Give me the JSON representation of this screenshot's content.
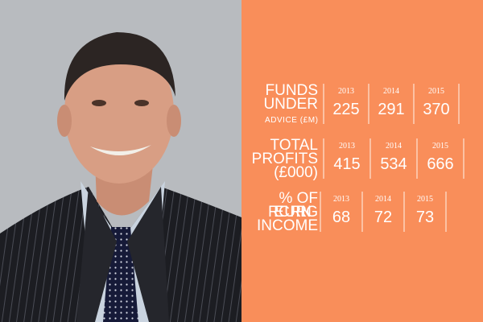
{
  "sections": [
    {
      "label": [
        "FUNDS",
        "UNDER",
        "ADVICE (£M)"
      ],
      "items": [
        {
          "year": 2013,
          "value": 225
        },
        {
          "year": 2014,
          "value": 291
        },
        {
          "year": 2015,
          "value": 370
        }
      ]
    },
    {
      "label": [
        "TOTAL",
        "PROFITS",
        "(£000)"
      ],
      "items": [
        {
          "year": 2013,
          "value": 415
        },
        {
          "year": 2014,
          "value": 534
        },
        {
          "year": 2015,
          "value": 666
        }
      ]
    },
    {
      "label": [
        "% OF",
        "RECURRING",
        "INCOME"
      ],
      "items": [
        {
          "year": 2013,
          "value": 68
        },
        {
          "year": 2014,
          "value": 72
        },
        {
          "year": 2015,
          "value": 73
        }
      ]
    }
  ]
}
